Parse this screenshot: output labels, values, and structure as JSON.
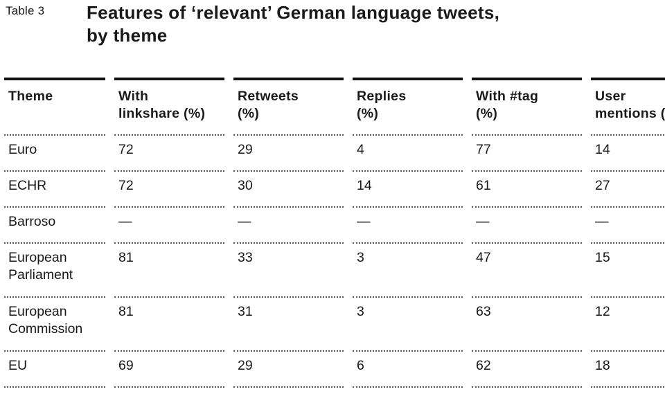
{
  "table_label": "Table 3",
  "title": "Features of ‘relevant’ German language tweets,\nby theme",
  "columns": [
    "Theme",
    "With\nlinkshare (%)",
    "Retweets\n(%)",
    "Replies\n(%)",
    "With #tag\n(%)",
    "User\nmentions (%)"
  ],
  "rows": [
    [
      "Euro",
      "72",
      "29",
      "4",
      "77",
      "14"
    ],
    [
      "ECHR",
      "72",
      "30",
      "14",
      "61",
      "27"
    ],
    [
      "Barroso",
      "—",
      "—",
      "—",
      "—",
      "—"
    ],
    [
      "European\nParliament",
      "81",
      "33",
      "3",
      "47",
      "15"
    ],
    [
      "European\nCommission",
      "81",
      "31",
      "3",
      "63",
      "12"
    ],
    [
      "EU",
      "69",
      "29",
      "6",
      "62",
      "18"
    ]
  ]
}
